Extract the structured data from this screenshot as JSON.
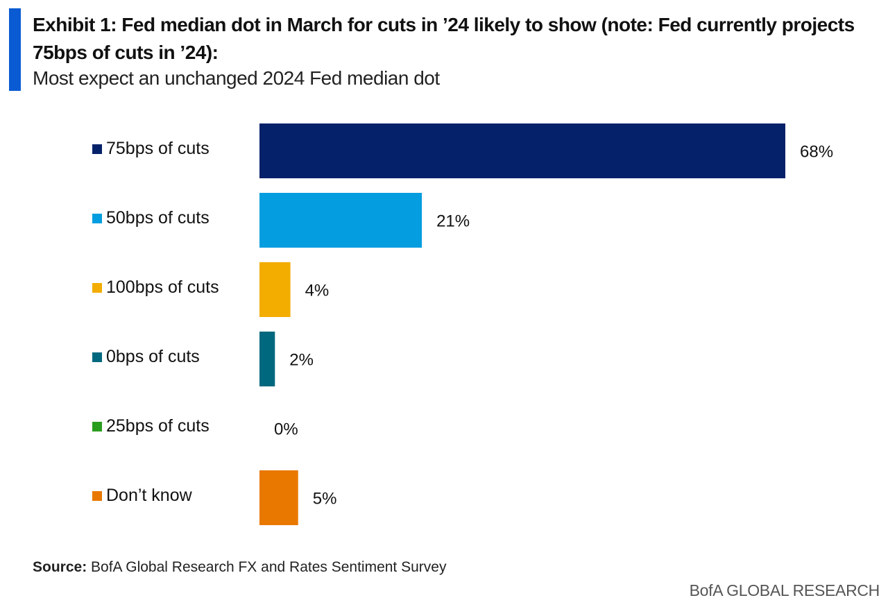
{
  "header": {
    "title": "Exhibit 1: Fed median dot in March for cuts in ’24 likely to show (note: Fed currently projects 75bps of cuts in ’24):",
    "subtitle": "Most expect an unchanged 2024 Fed median dot",
    "accent_color": "#0a5bd3"
  },
  "chart_data": {
    "type": "bar",
    "orientation": "horizontal",
    "categories": [
      "75bps of cuts",
      "50bps of cuts",
      "100bps of cuts",
      "0bps of cuts",
      "25bps of cuts",
      "Don’t know"
    ],
    "values": [
      68,
      21,
      4,
      2,
      0,
      5
    ],
    "value_labels": [
      "68%",
      "21%",
      "4%",
      "2%",
      "0%",
      "5%"
    ],
    "colors": [
      "#05216a",
      "#049ddf",
      "#f2ad00",
      "#00687e",
      "#2a9d1f",
      "#e87800"
    ],
    "unit": "%",
    "grid": false,
    "legend_placement": "left"
  },
  "footer": {
    "source_label": "Source:",
    "source_text": "BofA Global Research FX and Rates Sentiment Survey",
    "brand": "BofA GLOBAL RESEARCH"
  }
}
